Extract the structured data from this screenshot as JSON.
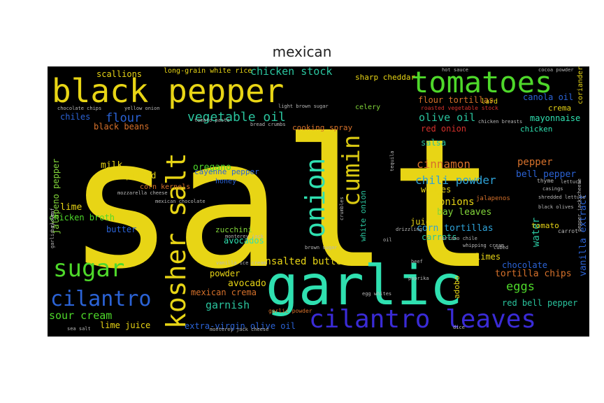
{
  "title": "mexican",
  "colors": {
    "yellow": "#e8d515",
    "yellow2": "#d9c812",
    "green": "#4ed82a",
    "lime": "#82d63a",
    "teal": "#2fe0b0",
    "teal2": "#2ac49e",
    "blue": "#2b63d6",
    "violet": "#3a2bd6",
    "lightblue": "#2ea1d6",
    "orange": "#d6712b",
    "red": "#d6312b",
    "gray": "#b8b8b8"
  },
  "words": [
    {
      "text": "salt",
      "color": "yellow"
    },
    {
      "text": "garlic",
      "color": "teal"
    },
    {
      "text": "black pepper",
      "color": "yellow"
    },
    {
      "text": "tomatoes",
      "color": "green"
    },
    {
      "text": "kosher salt",
      "color": "yellow"
    },
    {
      "text": "onion",
      "color": "teal"
    },
    {
      "text": "cumin",
      "color": "yellow2"
    },
    {
      "text": "cilantro leaves",
      "color": "violet"
    },
    {
      "text": "sugar",
      "color": "green"
    },
    {
      "text": "cilantro",
      "color": "blue"
    },
    {
      "text": "unsalted butter",
      "color": "yellow"
    },
    {
      "text": "vegetable oil",
      "color": "teal2"
    },
    {
      "text": "chicken stock",
      "color": "teal2"
    },
    {
      "text": "cinnamon",
      "color": "orange"
    },
    {
      "text": "chili powder",
      "color": "lightblue"
    },
    {
      "text": "olive oil",
      "color": "teal2"
    },
    {
      "text": "flour",
      "color": "blue"
    },
    {
      "text": "sour cream",
      "color": "green"
    },
    {
      "text": "eggs",
      "color": "green"
    },
    {
      "text": "garnish",
      "color": "teal2"
    },
    {
      "text": "mexican crema",
      "color": "orange"
    },
    {
      "text": "lime juice",
      "color": "yellow"
    },
    {
      "text": "extra-virgin olive oil",
      "color": "blue"
    },
    {
      "text": "avocado",
      "color": "yellow"
    },
    {
      "text": "avocados",
      "color": "teal"
    },
    {
      "text": "onions",
      "color": "yellow"
    },
    {
      "text": "bay leaves",
      "color": "lime"
    },
    {
      "text": "corn tortillas",
      "color": "lightblue"
    },
    {
      "text": "carrots",
      "color": "teal2"
    },
    {
      "text": "water",
      "color": "teal2"
    },
    {
      "text": "pepper",
      "color": "orange"
    },
    {
      "text": "bell pepper",
      "color": "blue"
    },
    {
      "text": "vanilla extract",
      "color": "blue"
    },
    {
      "text": "red bell pepper",
      "color": "teal2"
    },
    {
      "text": "tortilla chips",
      "color": "orange"
    },
    {
      "text": "chocolate",
      "color": "blue"
    },
    {
      "text": "limes",
      "color": "yellow"
    },
    {
      "text": "salsa",
      "color": "teal2"
    },
    {
      "text": "red onion",
      "color": "red"
    },
    {
      "text": "flour tortillas",
      "color": "orange"
    },
    {
      "text": "canola oil",
      "color": "blue"
    },
    {
      "text": "mayonnaise",
      "color": "teal"
    },
    {
      "text": "chicken",
      "color": "teal"
    },
    {
      "text": "milk",
      "color": "yellow"
    },
    {
      "text": "oregano",
      "color": "green"
    },
    {
      "text": "cayenne pepper",
      "color": "blue"
    },
    {
      "text": "pitted",
      "color": "yellow"
    },
    {
      "text": "lime",
      "color": "yellow"
    },
    {
      "text": "chicken broth",
      "color": "green"
    },
    {
      "text": "butter",
      "color": "blue"
    },
    {
      "text": "scallions",
      "color": "yellow"
    },
    {
      "text": "chiles",
      "color": "blue"
    },
    {
      "text": "black beans",
      "color": "orange"
    },
    {
      "text": "jalapeno pepper",
      "color": "lime"
    },
    {
      "text": "powder",
      "color": "yellow"
    },
    {
      "text": "juice",
      "color": "yellow"
    },
    {
      "text": "tomato",
      "color": "yellow"
    },
    {
      "text": "wedges",
      "color": "yellow"
    },
    {
      "text": "zucchini",
      "color": "lime"
    },
    {
      "text": "white onion",
      "color": "teal2"
    },
    {
      "text": "honey",
      "color": "blue"
    },
    {
      "text": "corn kernels",
      "color": "orange"
    },
    {
      "text": "adobo",
      "color": "yellow"
    },
    {
      "text": "celery",
      "color": "lime"
    },
    {
      "text": "cooking spray",
      "color": "orange"
    },
    {
      "text": "long-grain white rice",
      "color": "yellow"
    },
    {
      "text": "sharp cheddar",
      "color": "yellow"
    },
    {
      "text": "roasted vegetable stock",
      "color": "red"
    },
    {
      "text": "jalapenos",
      "color": "orange"
    },
    {
      "text": "coriander",
      "color": "yellow"
    },
    {
      "text": "crema",
      "color": "yellow"
    },
    {
      "text": "lard",
      "color": "yellow"
    },
    {
      "text": "light brown sugar",
      "color": "gray"
    },
    {
      "text": "tomato paste",
      "color": "gray"
    },
    {
      "text": "garlic powder",
      "color": "orange"
    },
    {
      "text": "chocolate chips",
      "color": "gray"
    },
    {
      "text": "yellow onion",
      "color": "gray"
    },
    {
      "text": "mozzarella cheese",
      "color": "gray"
    },
    {
      "text": "mexican chocolate",
      "color": "gray"
    },
    {
      "text": "monterey jack",
      "color": "gray"
    },
    {
      "text": "brown sugar",
      "color": "gray"
    },
    {
      "text": "vanilla ice cream",
      "color": "gray"
    },
    {
      "text": "monterey jack cheese",
      "color": "gray"
    },
    {
      "text": "chicken breasts",
      "color": "gray"
    },
    {
      "text": "thyme",
      "color": "gray"
    },
    {
      "text": "lettuce",
      "color": "gray"
    },
    {
      "text": "black olives",
      "color": "gray"
    },
    {
      "text": "shredded lettuce",
      "color": "gray"
    },
    {
      "text": "egg whites",
      "color": "gray"
    },
    {
      "text": "paprika",
      "color": "gray"
    },
    {
      "text": "sea salt",
      "color": "gray"
    },
    {
      "text": "cocoa powder",
      "color": "gray"
    },
    {
      "text": "hot sauce",
      "color": "gray"
    },
    {
      "text": "serrano chile",
      "color": "gray"
    },
    {
      "text": "whipping cream",
      "color": "gray"
    },
    {
      "text": "drizzling",
      "color": "gray"
    },
    {
      "text": "carrot",
      "color": "gray"
    },
    {
      "text": "pepper jack cheese",
      "color": "gray"
    },
    {
      "text": "cubed",
      "color": "gray"
    },
    {
      "text": "beef",
      "color": "gray"
    },
    {
      "text": "dice",
      "color": "gray"
    },
    {
      "text": "bread crumbs",
      "color": "gray"
    },
    {
      "text": "tequila",
      "color": "gray"
    },
    {
      "text": "garlic clove",
      "color": "gray"
    },
    {
      "text": "bay leaf",
      "color": "gray"
    },
    {
      "text": "crumbles",
      "color": "gray"
    },
    {
      "text": "oil",
      "color": "gray"
    },
    {
      "text": "casings",
      "color": "gray"
    }
  ]
}
